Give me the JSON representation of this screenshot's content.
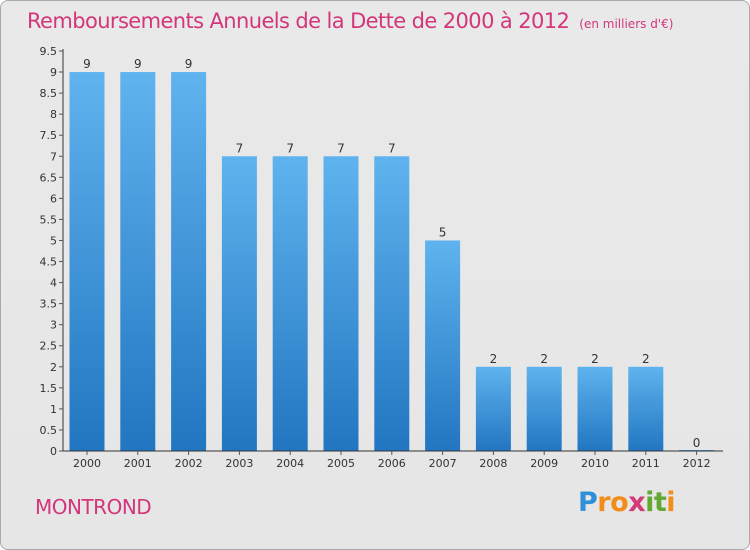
{
  "page": {
    "title": "Remboursements Annuels de la Dette de 2000 à 2012",
    "unit": "(en milliers d'€)",
    "city": "MONTROND",
    "brand": {
      "text": "Proxiti",
      "letter_colors": [
        "#2f8fd8",
        "#f28c1a",
        "#f28c1a",
        "#d53a78",
        "#63a832",
        "#63a832",
        "#f28c1a"
      ]
    }
  },
  "colors": {
    "title": "#d3367a",
    "bar_top": "#5fb3ee",
    "bar_bottom": "#2276c1",
    "axis": "#333333",
    "grid_tick": "#555555"
  },
  "chart_data": {
    "type": "bar",
    "categories": [
      "2000",
      "2001",
      "2002",
      "2003",
      "2004",
      "2005",
      "2006",
      "2007",
      "2008",
      "2009",
      "2010",
      "2011",
      "2012"
    ],
    "values": [
      9,
      9,
      9,
      7,
      7,
      7,
      7,
      5,
      2,
      2,
      2,
      2,
      0
    ],
    "data_labels": [
      "9",
      "9",
      "9",
      "7",
      "7",
      "7",
      "7",
      "5",
      "2",
      "2",
      "2",
      "2",
      "0"
    ],
    "ylim": [
      0,
      9.5
    ],
    "yticks": [
      0,
      0.5,
      1,
      1.5,
      2,
      2.5,
      3,
      3.5,
      4,
      4.5,
      5,
      5.5,
      6,
      6.5,
      7,
      7.5,
      8,
      8.5,
      9,
      9.5
    ],
    "ytick_labels": [
      "0",
      "0.5",
      "1",
      "1.5",
      "2",
      "2.5",
      "3",
      "3.5",
      "4",
      "4.5",
      "5",
      "5.5",
      "6",
      "6.5",
      "7",
      "7.5",
      "8",
      "8.5",
      "9",
      "9.5"
    ],
    "grid": false,
    "legend": "none"
  }
}
